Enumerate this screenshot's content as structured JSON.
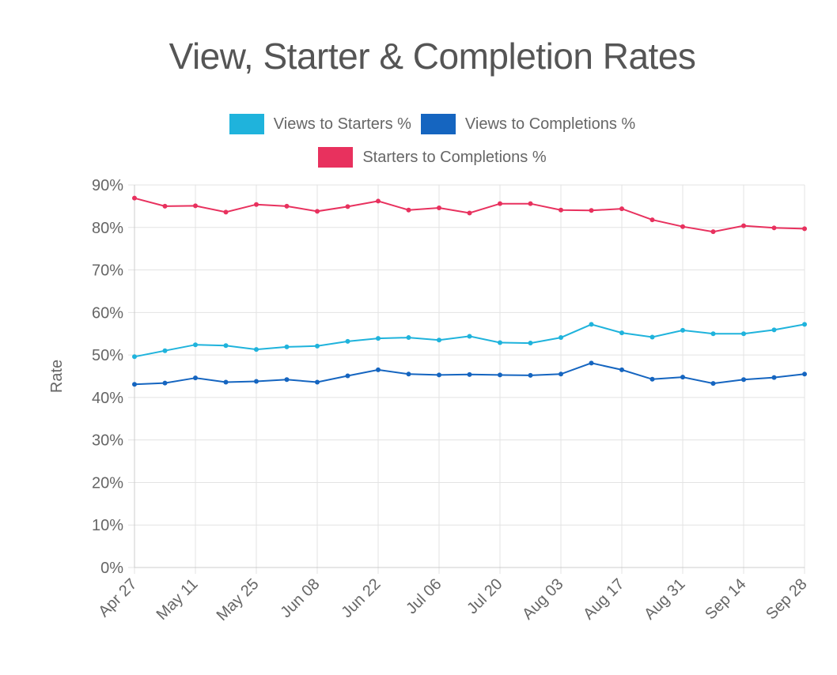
{
  "chart_data": {
    "type": "line",
    "title": "View, Starter & Completion Rates",
    "ylabel": "Rate",
    "xlabel": "",
    "ylim": [
      0,
      90
    ],
    "y_ticks": [
      "0%",
      "10%",
      "20%",
      "30%",
      "40%",
      "50%",
      "60%",
      "70%",
      "80%",
      "90%"
    ],
    "x": [
      "Apr 27",
      "May 04",
      "May 11",
      "May 18",
      "May 25",
      "Jun 01",
      "Jun 08",
      "Jun 15",
      "Jun 22",
      "Jun 29",
      "Jul 06",
      "Jul 13",
      "Jul 20",
      "Jul 27",
      "Aug 03",
      "Aug 10",
      "Aug 17",
      "Aug 24",
      "Aug 31",
      "Sep 07",
      "Sep 14",
      "Sep 21",
      "Sep 28"
    ],
    "x_tick_labels": [
      "Apr 27",
      "May 11",
      "May 25",
      "Jun 08",
      "Jun 22",
      "Jul 06",
      "Jul 20",
      "Aug 03",
      "Aug 17",
      "Aug 31",
      "Sep 14",
      "Sep 28"
    ],
    "grid": true,
    "legend_position": "top",
    "series": [
      {
        "name": "Views to Starters %",
        "color": "#1FB3DC",
        "values": [
          49.6,
          51.0,
          52.4,
          52.2,
          51.3,
          51.9,
          52.1,
          53.2,
          53.9,
          54.1,
          53.5,
          54.4,
          52.9,
          52.8,
          54.1,
          57.2,
          55.2,
          54.2,
          55.8,
          55.0,
          55.0,
          55.9,
          57.2
        ]
      },
      {
        "name": "Views to Completions %",
        "color": "#1565C0",
        "values": [
          43.1,
          43.4,
          44.6,
          43.6,
          43.8,
          44.2,
          43.6,
          45.1,
          46.5,
          45.5,
          45.3,
          45.4,
          45.3,
          45.2,
          45.5,
          48.1,
          46.5,
          44.3,
          44.8,
          43.3,
          44.2,
          44.7,
          45.5
        ]
      },
      {
        "name": "Starters to Completions %",
        "color": "#E8315E",
        "values": [
          86.9,
          85.0,
          85.1,
          83.6,
          85.4,
          85.0,
          83.8,
          84.9,
          86.2,
          84.1,
          84.6,
          83.4,
          85.6,
          85.6,
          84.1,
          84.0,
          84.4,
          81.8,
          80.2,
          79.0,
          80.4,
          79.9,
          79.7
        ]
      }
    ]
  }
}
